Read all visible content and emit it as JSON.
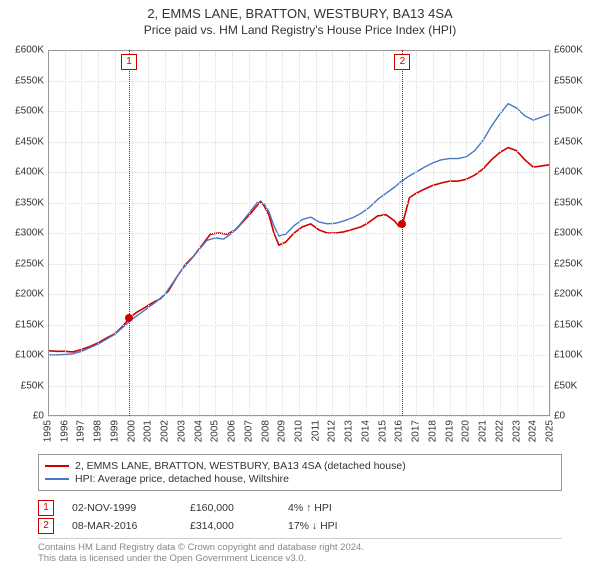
{
  "title": "2, EMMS LANE, BRATTON, WESTBURY, BA13 4SA",
  "subtitle": "Price paid vs. HM Land Registry's House Price Index (HPI)",
  "chart": {
    "type": "line",
    "background_color": "#ffffff",
    "grid_color": "#dddddd",
    "plot_border_color": "#999999",
    "x": {
      "min": 1995,
      "max": 2025,
      "ticks": [
        1995,
        1996,
        1997,
        1998,
        1999,
        2000,
        2001,
        2002,
        2003,
        2004,
        2005,
        2006,
        2007,
        2008,
        2009,
        2010,
        2011,
        2012,
        2013,
        2014,
        2015,
        2016,
        2017,
        2018,
        2019,
        2020,
        2021,
        2022,
        2023,
        2024,
        2025
      ],
      "label_fontsize": 10
    },
    "y": {
      "min": 0,
      "max": 600000,
      "tick_step": 50000,
      "tick_format_prefix": "£",
      "ticks": [
        0,
        50000,
        100000,
        150000,
        200000,
        250000,
        300000,
        350000,
        400000,
        450000,
        500000,
        550000,
        600000
      ],
      "label_fontsize": 10
    },
    "series": [
      {
        "id": "price_paid",
        "label": "2, EMMS LANE, BRATTON, WESTBURY, BA13 4SA (detached house)",
        "color": "#d00000",
        "width": 1.6,
        "data": [
          [
            1995.0,
            107000
          ],
          [
            1995.5,
            106000
          ],
          [
            1996.0,
            106000
          ],
          [
            1996.5,
            105000
          ],
          [
            1997.0,
            109000
          ],
          [
            1997.5,
            114000
          ],
          [
            1998.0,
            120000
          ],
          [
            1998.5,
            128000
          ],
          [
            1999.0,
            135000
          ],
          [
            1999.5,
            148000
          ],
          [
            1999.84,
            160000
          ],
          [
            2000.3,
            170000
          ],
          [
            2000.8,
            178000
          ],
          [
            2001.2,
            185000
          ],
          [
            2001.7,
            192000
          ],
          [
            2002.2,
            205000
          ],
          [
            2002.7,
            228000
          ],
          [
            2003.2,
            248000
          ],
          [
            2003.7,
            262000
          ],
          [
            2004.2,
            280000
          ],
          [
            2004.7,
            298000
          ],
          [
            2005.2,
            300000
          ],
          [
            2005.7,
            298000
          ],
          [
            2006.2,
            305000
          ],
          [
            2006.7,
            320000
          ],
          [
            2007.2,
            335000
          ],
          [
            2007.7,
            352000
          ],
          [
            2007.9,
            345000
          ],
          [
            2008.2,
            330000
          ],
          [
            2008.5,
            300000
          ],
          [
            2008.8,
            280000
          ],
          [
            2009.2,
            285000
          ],
          [
            2009.7,
            300000
          ],
          [
            2010.2,
            310000
          ],
          [
            2010.7,
            315000
          ],
          [
            2011.2,
            305000
          ],
          [
            2011.7,
            300000
          ],
          [
            2012.2,
            300000
          ],
          [
            2012.7,
            302000
          ],
          [
            2013.2,
            306000
          ],
          [
            2013.7,
            310000
          ],
          [
            2014.2,
            318000
          ],
          [
            2014.7,
            328000
          ],
          [
            2015.2,
            330000
          ],
          [
            2015.7,
            320000
          ],
          [
            2016.0,
            310000
          ],
          [
            2016.18,
            314000
          ],
          [
            2016.6,
            358000
          ],
          [
            2017.0,
            365000
          ],
          [
            2017.5,
            372000
          ],
          [
            2018.0,
            378000
          ],
          [
            2018.5,
            382000
          ],
          [
            2019.0,
            385000
          ],
          [
            2019.5,
            385000
          ],
          [
            2020.0,
            388000
          ],
          [
            2020.5,
            395000
          ],
          [
            2021.0,
            405000
          ],
          [
            2021.5,
            420000
          ],
          [
            2022.0,
            432000
          ],
          [
            2022.5,
            440000
          ],
          [
            2023.0,
            435000
          ],
          [
            2023.5,
            420000
          ],
          [
            2024.0,
            408000
          ],
          [
            2024.5,
            410000
          ],
          [
            2025.0,
            412000
          ]
        ]
      },
      {
        "id": "hpi",
        "label": "HPI: Average price, detached house, Wiltshire",
        "color": "#4a78c4",
        "width": 1.4,
        "data": [
          [
            1995.0,
            100000
          ],
          [
            1995.5,
            100000
          ],
          [
            1996.0,
            101000
          ],
          [
            1996.5,
            102000
          ],
          [
            1997.0,
            106000
          ],
          [
            1997.5,
            112000
          ],
          [
            1998.0,
            118000
          ],
          [
            1998.5,
            126000
          ],
          [
            1999.0,
            134000
          ],
          [
            1999.5,
            146000
          ],
          [
            2000.0,
            158000
          ],
          [
            2000.5,
            168000
          ],
          [
            2001.0,
            178000
          ],
          [
            2001.5,
            188000
          ],
          [
            2002.0,
            200000
          ],
          [
            2002.5,
            220000
          ],
          [
            2003.0,
            240000
          ],
          [
            2003.5,
            255000
          ],
          [
            2004.0,
            272000
          ],
          [
            2004.5,
            288000
          ],
          [
            2005.0,
            292000
          ],
          [
            2005.5,
            290000
          ],
          [
            2006.0,
            300000
          ],
          [
            2006.5,
            315000
          ],
          [
            2007.0,
            332000
          ],
          [
            2007.5,
            350000
          ],
          [
            2007.9,
            348000
          ],
          [
            2008.2,
            335000
          ],
          [
            2008.5,
            312000
          ],
          [
            2008.8,
            295000
          ],
          [
            2009.2,
            298000
          ],
          [
            2009.7,
            312000
          ],
          [
            2010.2,
            322000
          ],
          [
            2010.7,
            326000
          ],
          [
            2011.2,
            318000
          ],
          [
            2011.7,
            315000
          ],
          [
            2012.2,
            316000
          ],
          [
            2012.7,
            320000
          ],
          [
            2013.2,
            325000
          ],
          [
            2013.7,
            332000
          ],
          [
            2014.2,
            342000
          ],
          [
            2014.7,
            355000
          ],
          [
            2015.2,
            365000
          ],
          [
            2015.7,
            375000
          ],
          [
            2016.0,
            382000
          ],
          [
            2016.5,
            392000
          ],
          [
            2017.0,
            400000
          ],
          [
            2017.5,
            408000
          ],
          [
            2018.0,
            415000
          ],
          [
            2018.5,
            420000
          ],
          [
            2019.0,
            422000
          ],
          [
            2019.5,
            422000
          ],
          [
            2020.0,
            425000
          ],
          [
            2020.5,
            435000
          ],
          [
            2021.0,
            452000
          ],
          [
            2021.5,
            475000
          ],
          [
            2022.0,
            495000
          ],
          [
            2022.5,
            512000
          ],
          [
            2023.0,
            505000
          ],
          [
            2023.5,
            492000
          ],
          [
            2024.0,
            485000
          ],
          [
            2024.5,
            490000
          ],
          [
            2025.0,
            495000
          ]
        ]
      }
    ],
    "markers": [
      {
        "n": "1",
        "x": 1999.84,
        "y": 160000,
        "line_color": "#d00000",
        "dot_color": "#d00000"
      },
      {
        "n": "2",
        "x": 2016.18,
        "y": 314000,
        "line_color": "#d00000",
        "dot_color": "#d00000"
      }
    ]
  },
  "legend": {
    "border_color": "#999999",
    "items": [
      {
        "swatch": "#d00000",
        "text": "2, EMMS LANE, BRATTON, WESTBURY, BA13 4SA (detached house)"
      },
      {
        "swatch": "#4a78c4",
        "text": "HPI: Average price, detached house, Wiltshire"
      }
    ]
  },
  "events": [
    {
      "n": "1",
      "date": "02-NOV-1999",
      "price": "£160,000",
      "delta": "4% ↑ HPI"
    },
    {
      "n": "2",
      "date": "08-MAR-2016",
      "price": "£314,000",
      "delta": "17% ↓ HPI"
    }
  ],
  "footer_line1": "Contains HM Land Registry data © Crown copyright and database right 2024.",
  "footer_line2": "This data is licensed under the Open Government Licence v3.0."
}
